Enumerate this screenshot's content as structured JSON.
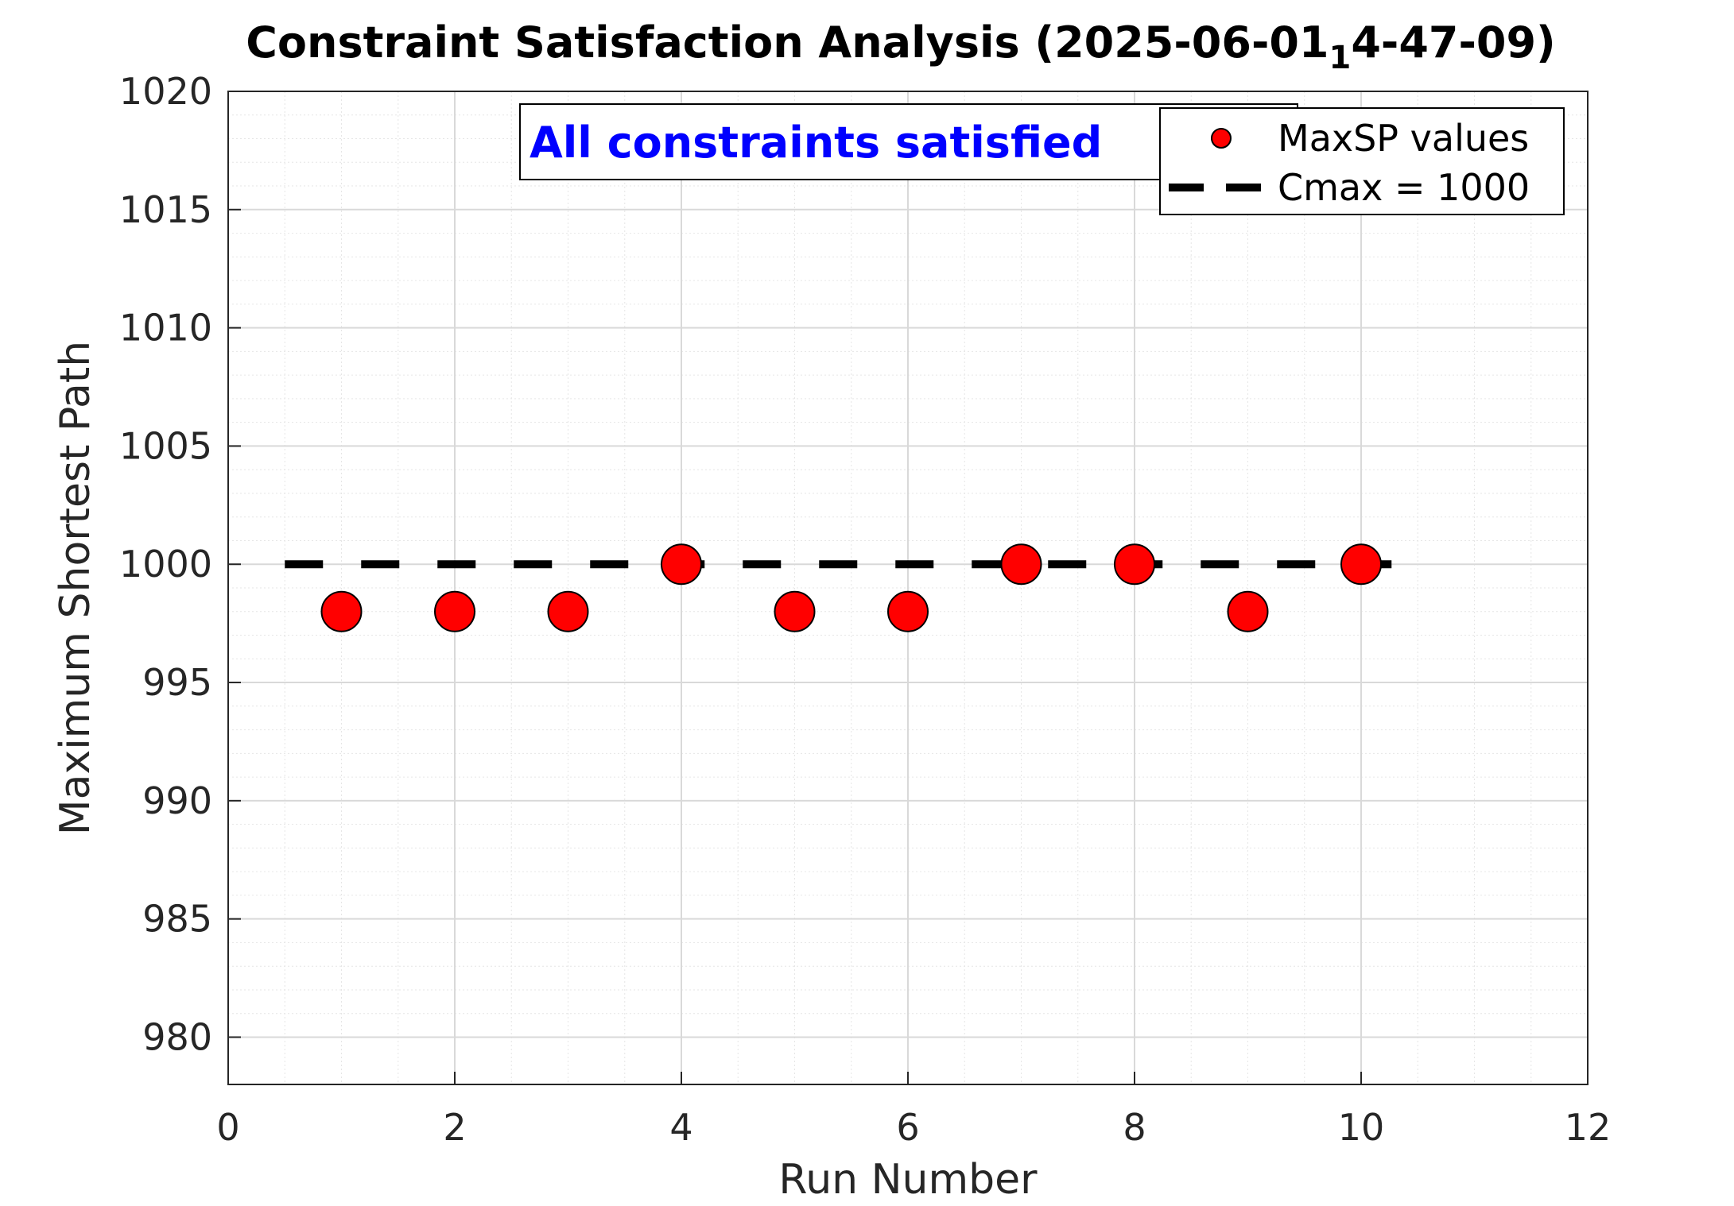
{
  "chart_data": {
    "type": "scatter",
    "title": "Constraint Satisfaction Analysis (2025-06-01",
    "title_subscript": "1",
    "title_suffix": "4-47-09)",
    "xlabel": "Run Number",
    "ylabel": "Maximum Shortest Path",
    "xlim": [
      0,
      12
    ],
    "ylim": [
      978,
      1020
    ],
    "xticks": [
      0,
      2,
      4,
      6,
      8,
      10,
      12
    ],
    "yticks": [
      980,
      985,
      990,
      995,
      1000,
      1005,
      1010,
      1015,
      1020
    ],
    "grid": true,
    "minor_grid": true,
    "series": [
      {
        "name": "MaxSP values",
        "marker": "circle",
        "color": "#ff0000",
        "x": [
          1,
          2,
          3,
          4,
          5,
          6,
          7,
          8,
          9,
          10
        ],
        "values": [
          998,
          998,
          998,
          1000,
          998,
          998,
          1000,
          1000,
          998,
          1000
        ]
      },
      {
        "name": "Cmax = 1000",
        "style": "dashed",
        "color": "#000000",
        "x": [
          0.5,
          10.5
        ],
        "values": [
          1000,
          1000
        ]
      }
    ],
    "legend": {
      "placement": "top-right",
      "entries": [
        "MaxSP values",
        "Cmax = 1000"
      ]
    },
    "annotation": {
      "text": "All constraints satisfied",
      "color": "#0000ff"
    }
  }
}
